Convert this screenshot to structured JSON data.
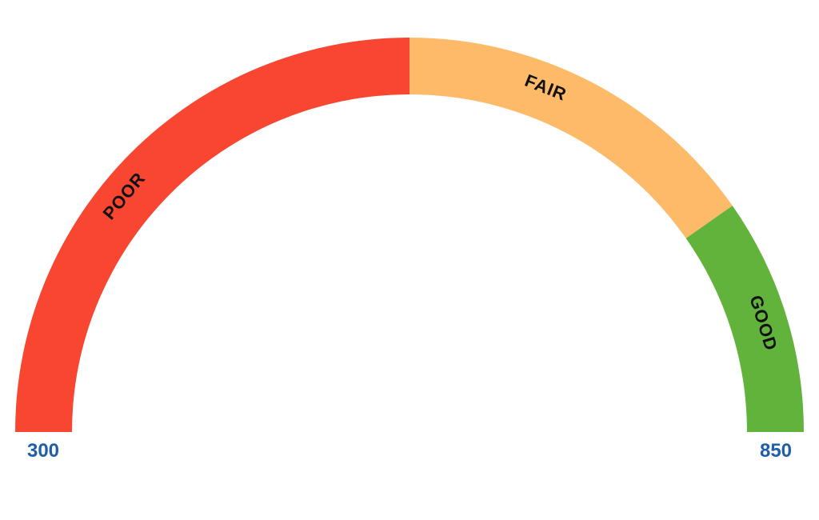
{
  "gauge": {
    "min": 300,
    "max": 850,
    "min_label": "300",
    "max_label": "850",
    "segments": [
      {
        "label": "POOR",
        "from": 300,
        "to": 575,
        "color": "#f84631"
      },
      {
        "label": "FAIR",
        "from": 575,
        "to": 750,
        "color": "#fdbb6a"
      },
      {
        "label": "GOOD",
        "from": 750,
        "to": 850,
        "color": "#62b33c"
      }
    ]
  }
}
